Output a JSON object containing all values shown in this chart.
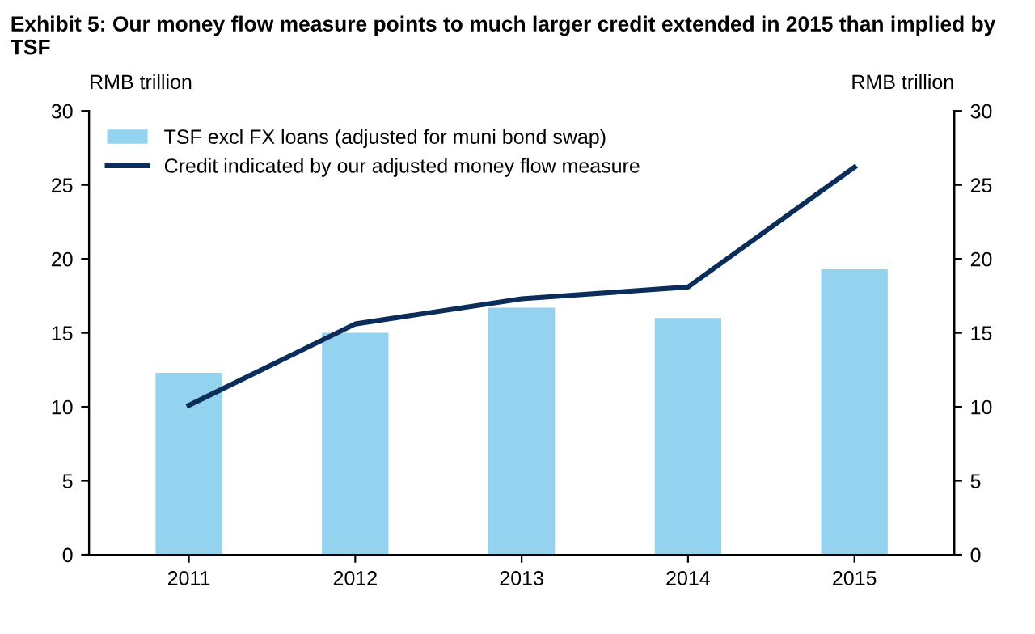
{
  "chart_data": {
    "type": "bar",
    "title": "Exhibit 5: Our money flow measure points to much larger credit extended in 2015 than implied by TSF",
    "ylabel": "RMB trillion",
    "y2label": "RMB trillion",
    "categories": [
      "2011",
      "2012",
      "2013",
      "2014",
      "2015"
    ],
    "series": [
      {
        "name": "TSF excl FX loans (adjusted for muni bond swap)",
        "color": "#93d3f0",
        "values": [
          12.3,
          15.0,
          16.7,
          16.0,
          19.3
        ]
      },
      {
        "name": "Credit indicated by our adjusted money flow measure",
        "type": "line",
        "color": "#0b2d5a",
        "values": [
          10.1,
          15.6,
          17.3,
          18.1,
          26.2
        ]
      }
    ],
    "ylim": [
      0,
      30
    ],
    "yticks": [
      0,
      5,
      10,
      15,
      20,
      25,
      30
    ],
    "y2lim": [
      0,
      30
    ],
    "y2ticks": [
      0,
      5,
      10,
      15,
      20,
      25,
      30
    ],
    "grid": false,
    "legend": "top left",
    "marker": "none"
  }
}
